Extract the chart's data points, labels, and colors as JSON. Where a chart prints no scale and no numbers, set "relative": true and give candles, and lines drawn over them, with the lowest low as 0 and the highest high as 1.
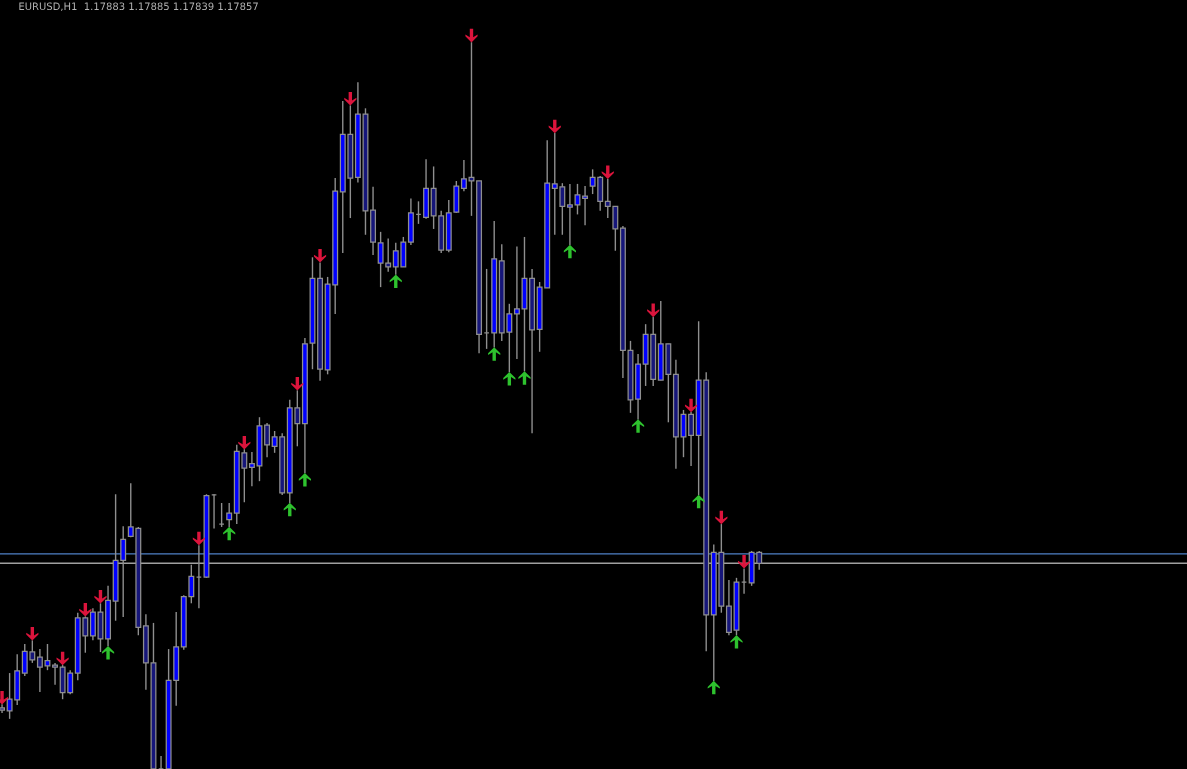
{
  "chart_data": {
    "type": "candlestick",
    "title": "EURUSD,H1  1.17883 1.17885 1.17839 1.17857",
    "relative": true,
    "categories": [
      null,
      null,
      null,
      null,
      null,
      null,
      null,
      null,
      null,
      null,
      null,
      null,
      null,
      null,
      null,
      null,
      null,
      null,
      null,
      null,
      null,
      null,
      null,
      null,
      null,
      null,
      null,
      null,
      null,
      null,
      null,
      null,
      null,
      null,
      null,
      null,
      null,
      null,
      null,
      null,
      null,
      null,
      null,
      null,
      null,
      null,
      null,
      null,
      null,
      null,
      null,
      null,
      null,
      null,
      null,
      null,
      null,
      null,
      null,
      null,
      null,
      null,
      null,
      null,
      null,
      null,
      null,
      null,
      null,
      null,
      null,
      null,
      null,
      null,
      null,
      null,
      null,
      null,
      null,
      null,
      null,
      null,
      null,
      null,
      null,
      null,
      null,
      null,
      null,
      null,
      null,
      null,
      null,
      null,
      null,
      null,
      null,
      null,
      null,
      null,
      null
    ],
    "color": "#8f8f8f",
    "ohlc": [
      [
        0.084,
        0.089,
        0.077,
        0.081
      ],
      [
        0.08,
        0.132,
        0.069,
        0.096
      ],
      [
        0.095,
        0.158,
        0.088,
        0.135
      ],
      [
        0.132,
        0.172,
        0.128,
        0.162
      ],
      [
        0.161,
        0.177,
        0.146,
        0.15
      ],
      [
        0.154,
        0.165,
        0.106,
        0.14
      ],
      [
        0.142,
        0.172,
        0.136,
        0.149
      ],
      [
        0.143,
        0.146,
        0.116,
        0.14
      ],
      [
        0.14,
        0.143,
        0.096,
        0.105
      ],
      [
        0.105,
        0.136,
        0.103,
        0.132
      ],
      [
        0.132,
        0.215,
        0.122,
        0.208
      ],
      [
        0.208,
        0.21,
        0.16,
        0.183
      ],
      [
        0.183,
        0.221,
        0.177,
        0.216
      ],
      [
        0.216,
        0.228,
        0.161,
        0.179
      ],
      [
        0.179,
        0.252,
        0.169,
        0.232
      ],
      [
        0.231,
        0.378,
        0.204,
        0.287
      ],
      [
        0.287,
        0.334,
        0.209,
        0.316
      ],
      [
        0.32,
        0.393,
        0.319,
        0.333
      ],
      [
        0.331,
        0.333,
        0.184,
        0.195
      ],
      [
        0.197,
        0.213,
        0.109,
        0.146
      ],
      [
        0.146,
        0.201,
        0,
        0
      ],
      [
        0,
        0.018,
        0,
        0
      ],
      [
        0,
        0.165,
        0,
        0.122
      ],
      [
        0.122,
        0.216,
        0.087,
        0.168
      ],
      [
        0.168,
        0.239,
        0.164,
        0.237
      ],
      [
        0.237,
        0.281,
        0.228,
        0.265
      ],
      [
        0.264,
        0.308,
        0.221,
        0.264
      ],
      [
        0.264,
        0.378,
        0.263,
        0.376
      ],
      [
        0.377,
        0.378,
        0.331,
        0.377
      ],
      [
        0.337,
        0.366,
        0.333,
        0.337
      ],
      [
        0.343,
        0.366,
        0.333,
        0.352
      ],
      [
        0.352,
        0.446,
        0.337,
        0.437
      ],
      [
        0.435,
        0.44,
        0.367,
        0.414
      ],
      [
        0.415,
        0.436,
        0.389,
        0.42
      ],
      [
        0.417,
        0.484,
        0.396,
        0.472
      ],
      [
        0.473,
        0.476,
        0.429,
        0.446
      ],
      [
        0.444,
        0.465,
        0.435,
        0.457
      ],
      [
        0.457,
        0.462,
        0.377,
        0.38
      ],
      [
        0.38,
        0.508,
        0.366,
        0.497
      ],
      [
        0.497,
        0.521,
        0.444,
        0.475
      ],
      [
        0.475,
        0.593,
        0.407,
        0.585
      ],
      [
        0.586,
        0.704,
        0.55,
        0.675
      ],
      [
        0.675,
        0.697,
        0.534,
        0.55
      ],
      [
        0.549,
        0.677,
        0.543,
        0.667
      ],
      [
        0.666,
        0.813,
        0.626,
        0.795
      ],
      [
        0.794,
        0.919,
        0.71,
        0.873
      ],
      [
        0.873,
        0.913,
        0.758,
        0.813
      ],
      [
        0.814,
        0.945,
        0.807,
        0.901
      ],
      [
        0.901,
        0.909,
        0.735,
        0.768
      ],
      [
        0.769,
        0.801,
        0.707,
        0.725
      ],
      [
        0.696,
        0.739,
        0.663,
        0.724
      ],
      [
        0.696,
        0.73,
        0.684,
        0.691
      ],
      [
        0.691,
        0.724,
        0.68,
        0.713
      ],
      [
        0.691,
        0.732,
        0.691,
        0.725
      ],
      [
        0.725,
        0.785,
        0.721,
        0.765
      ],
      [
        0.763,
        0.781,
        0.75,
        0.763
      ],
      [
        0.759,
        0.839,
        0.757,
        0.799
      ],
      [
        0.799,
        0.829,
        0.743,
        0.761
      ],
      [
        0.761,
        0.768,
        0.71,
        0.714
      ],
      [
        0.714,
        0.783,
        0.711,
        0.765
      ],
      [
        0.766,
        0.809,
        0.765,
        0.802
      ],
      [
        0.799,
        0.838,
        0.795,
        0.812
      ],
      [
        0.814,
        1,
        0.761,
        0.809
      ],
      [
        0.809,
        0.809,
        0.572,
        0.598
      ],
      [
        0.6,
        0.688,
        0.578,
        0.6
      ],
      [
        0.6,
        0.754,
        0.58,
        0.702
      ],
      [
        0.699,
        0.722,
        0.589,
        0.6
      ],
      [
        0.601,
        0.64,
        0.546,
        0.626
      ],
      [
        0.626,
        0.719,
        0.564,
        0.633
      ],
      [
        0.633,
        0.732,
        0.547,
        0.675
      ],
      [
        0.675,
        0.688,
        0.462,
        0.604
      ],
      [
        0.605,
        0.67,
        0.574,
        0.663
      ],
      [
        0.662,
        0.865,
        0.662,
        0.806
      ],
      [
        0.799,
        0.875,
        0.735,
        0.805
      ],
      [
        0.801,
        0.806,
        0.735,
        0.774
      ],
      [
        0.773,
        0.805,
        0.721,
        0.776
      ],
      [
        0.776,
        0.805,
        0.763,
        0.79
      ],
      [
        0.785,
        0.802,
        0.748,
        0.788
      ],
      [
        0.802,
        0.825,
        0.791,
        0.814
      ],
      [
        0.814,
        0.816,
        0.768,
        0.781
      ],
      [
        0.781,
        0.812,
        0.758,
        0.774
      ],
      [
        0.774,
        0.774,
        0.713,
        0.743
      ],
      [
        0.744,
        0.747,
        0.538,
        0.576
      ],
      [
        0.576,
        0.589,
        0.49,
        0.508
      ],
      [
        0.509,
        0.571,
        0.481,
        0.557
      ],
      [
        0.557,
        0.612,
        0.527,
        0.598
      ],
      [
        0.598,
        0.622,
        0.527,
        0.536
      ],
      [
        0.535,
        0.644,
        0.535,
        0.585
      ],
      [
        0.585,
        0.585,
        0.477,
        0.543
      ],
      [
        0.543,
        0.563,
        0.413,
        0.457
      ],
      [
        0.457,
        0.494,
        0.429,
        0.488
      ],
      [
        0.488,
        0.491,
        0.417,
        0.459
      ],
      [
        0.459,
        0.616,
        0.377,
        0.535
      ],
      [
        0.535,
        0.546,
        0.162,
        0.212
      ],
      [
        0.212,
        0.309,
        0.121,
        0.298
      ],
      [
        0.298,
        0.337,
        0.215,
        0.224
      ],
      [
        0.224,
        0.26,
        0.184,
        0.188
      ],
      [
        0.191,
        0.263,
        0.184,
        0.257
      ],
      [
        0.257,
        0.276,
        0.241,
        0.257
      ],
      [
        0.256,
        0.3,
        0.252,
        0.298
      ],
      [
        0.298,
        0.3,
        0.274,
        0.283
      ]
    ],
    "colors": [
      "#16167a",
      "#0000ff",
      "#0000ff",
      "#0000ff",
      "#16167a",
      "#16167a",
      "#0000ff",
      "#16167a",
      "#16167a",
      "#0000ff",
      "#0000ff",
      "#16167a",
      "#0000ff",
      "#16167a",
      "#0000ff",
      "#0000ff",
      "#0000ff",
      "#0000ff",
      "#16167a",
      "#16167a",
      "#16167a",
      "#8f8f8f",
      "#0000ff",
      "#0000ff",
      "#0000ff",
      "#0000ff",
      "#8f8f8f",
      "#0000ff",
      "#8f8f8f",
      "#8f8f8f",
      "#0000ff",
      "#0000ff",
      "#16167a",
      "#0000ff",
      "#0000ff",
      "#16167a",
      "#0000ff",
      "#16167a",
      "#0000ff",
      "#16167a",
      "#0000ff",
      "#0000ff",
      "#16167a",
      "#0000ff",
      "#0000ff",
      "#0000ff",
      "#16167a",
      "#0000ff",
      "#16167a",
      "#16167a",
      "#0000ff",
      "#16167a",
      "#0000ff",
      "#0000ff",
      "#0000ff",
      "#8f8f8f",
      "#0000ff",
      "#16167a",
      "#16167a",
      "#0000ff",
      "#0000ff",
      "#0000ff",
      "#16167a",
      "#16167a",
      "#8f8f8f",
      "#0000ff",
      "#16167a",
      "#0000ff",
      "#0000ff",
      "#0000ff",
      "#16167a",
      "#0000ff",
      "#0000ff",
      "#0000ff",
      "#16167a",
      "#0000ff",
      "#0000ff",
      "#0000ff",
      "#0000ff",
      "#16167a",
      "#16167a",
      "#16167a",
      "#16167a",
      "#16167a",
      "#0000ff",
      "#0000ff",
      "#16167a",
      "#0000ff",
      "#16167a",
      "#16167a",
      "#0000ff",
      "#16167a",
      "#0000ff",
      "#16167a",
      "#0000ff",
      "#16167a",
      "#16167a",
      "#0000ff",
      "#8f8f8f",
      "#0000ff",
      "#16167a"
    ],
    "series": [
      {
        "type": "scatter",
        "color": "#dc143c",
        "values": [
          0.098,
          null,
          null,
          null,
          0.186,
          null,
          null,
          null,
          0.152,
          null,
          null,
          0.219,
          null,
          0.237,
          null,
          null,
          null,
          null,
          null,
          null,
          null,
          null,
          null,
          null,
          null,
          null,
          0.317,
          null,
          null,
          null,
          null,
          null,
          0.449,
          null,
          null,
          null,
          null,
          null,
          null,
          0.53,
          null,
          null,
          0.706,
          null,
          null,
          null,
          0.922,
          null,
          null,
          null,
          null,
          null,
          null,
          null,
          null,
          null,
          null,
          null,
          null,
          null,
          null,
          null,
          1.009,
          null,
          null,
          null,
          null,
          null,
          null,
          null,
          null,
          null,
          null,
          0.884,
          null,
          null,
          null,
          null,
          null,
          null,
          0.821,
          null,
          null,
          null,
          null,
          null,
          0.631,
          null,
          null,
          null,
          null,
          0.5,
          null,
          null,
          null,
          0.346,
          null,
          null,
          0.285,
          null,
          null
        ]
      },
      {
        "type": "scatter",
        "color": "#2ec22e",
        "values": [
          null,
          null,
          null,
          null,
          null,
          null,
          null,
          null,
          null,
          null,
          null,
          null,
          null,
          null,
          0.16,
          null,
          null,
          null,
          null,
          null,
          null,
          null,
          null,
          null,
          null,
          null,
          null,
          null,
          null,
          null,
          0.324,
          null,
          null,
          null,
          null,
          null,
          null,
          null,
          0.357,
          null,
          0.398,
          null,
          null,
          null,
          null,
          null,
          null,
          null,
          null,
          null,
          null,
          null,
          0.671,
          null,
          null,
          null,
          null,
          null,
          null,
          null,
          null,
          null,
          null,
          null,
          null,
          0.571,
          null,
          0.537,
          null,
          0.538,
          null,
          null,
          null,
          null,
          null,
          0.712,
          null,
          null,
          null,
          null,
          null,
          null,
          null,
          null,
          0.472,
          null,
          null,
          null,
          null,
          null,
          null,
          null,
          0.368,
          null,
          0.112,
          null,
          null,
          0.175,
          null,
          null,
          null
        ]
      }
    ],
    "ref_lines": [
      {
        "axis": "y",
        "value": 0.296,
        "color": "#4f81c7"
      },
      {
        "axis": "y",
        "value": 0.283,
        "color": "#a0a0a0"
      }
    ]
  }
}
